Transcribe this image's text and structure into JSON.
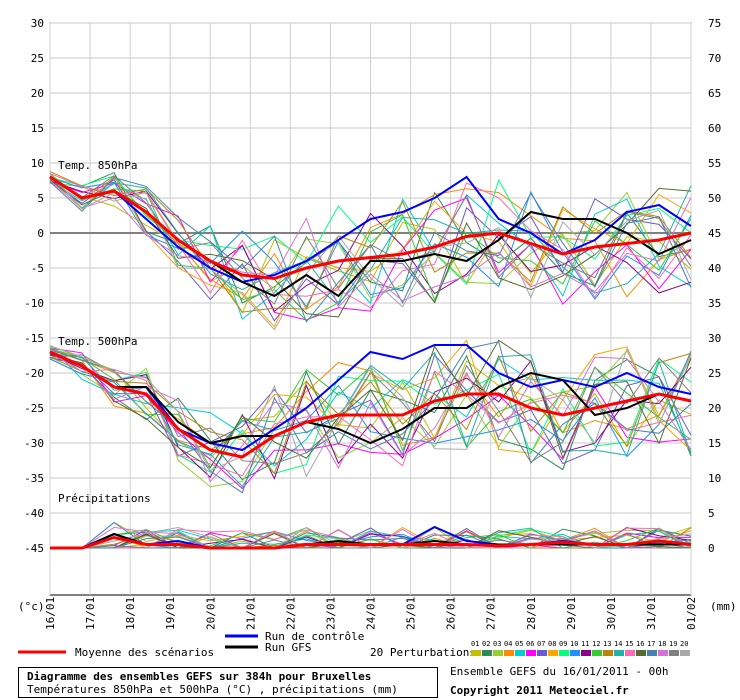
{
  "chart_data": {
    "type": "line",
    "x_ticks": [
      "16/01",
      "17/01",
      "18/01",
      "19/01",
      "20/01",
      "21/01",
      "22/01",
      "23/01",
      "24/01",
      "25/01",
      "26/01",
      "27/01",
      "28/01",
      "29/01",
      "30/01",
      "31/01",
      "01/02"
    ],
    "left_axis": {
      "label": "(°c)",
      "ticks": [
        30,
        25,
        20,
        15,
        10,
        5,
        0,
        -5,
        -10,
        -15,
        -20,
        -25,
        -30,
        -35,
        -40,
        -45
      ],
      "range": [
        -45,
        30
      ]
    },
    "right_axis": {
      "label": "(mm)",
      "ticks": [
        75,
        70,
        65,
        60,
        55,
        50,
        45,
        40,
        35,
        30,
        25,
        20,
        15,
        10,
        5,
        0
      ],
      "range": [
        0,
        75
      ]
    },
    "panels": [
      {
        "label": "Temp. 850hPa",
        "series": [
          {
            "name": "Moyenne des scénarios",
            "color": "#ff0000",
            "values": [
              8,
              5,
              6,
              3,
              -1,
              -4,
              -6,
              -6.5,
              -5,
              -4,
              -3.5,
              -3,
              -2,
              -0.5,
              0,
              -1.5,
              -3,
              -2,
              -1.5,
              -1,
              0
            ]
          },
          {
            "name": "Run de contrôle",
            "color": "#0000ff",
            "values": [
              8,
              5,
              6,
              2,
              -2,
              -5,
              -7,
              -6,
              -4,
              -1,
              2,
              3,
              5,
              8,
              2,
              0,
              -3,
              -1,
              3,
              4,
              1
            ]
          },
          {
            "name": "Run GFS",
            "color": "#000000",
            "values": [
              8,
              5,
              6,
              3,
              -1,
              -4,
              -7,
              -9,
              -6,
              -9,
              -4,
              -4,
              -3,
              -4,
              -1,
              3,
              2,
              2,
              0,
              -3,
              -1
            ]
          }
        ]
      },
      {
        "label": "Temp. 500hPa",
        "series": [
          {
            "name": "Moyenne des scénarios",
            "color": "#ff0000",
            "values": [
              -17,
              -19,
              -22,
              -23,
              -28,
              -31,
              -32,
              -29,
              -27,
              -26,
              -26,
              -26,
              -24,
              -23,
              -23,
              -25,
              -26,
              -25,
              -24,
              -23,
              -24
            ]
          },
          {
            "name": "Run de contrôle",
            "color": "#0000ff",
            "values": [
              -17,
              -19,
              -22,
              -22,
              -28,
              -30,
              -31,
              -28,
              -25,
              -21,
              -17,
              -18,
              -16,
              -16,
              -20,
              -22,
              -21,
              -22,
              -20,
              -22,
              -23
            ]
          },
          {
            "name": "Run GFS",
            "color": "#000000",
            "values": [
              -17,
              -19,
              -22,
              -22,
              -27,
              -30,
              -29,
              -29,
              -27,
              -28,
              -30,
              -28,
              -25,
              -25,
              -22,
              -20,
              -21,
              -26,
              -25,
              -23,
              -24
            ]
          }
        ]
      },
      {
        "label": "Précipitations",
        "series": [
          {
            "name": "Moyenne des scénarios",
            "color": "#ff0000",
            "values": [
              0,
              0,
              1.5,
              0.5,
              0.5,
              0,
              0,
              0,
              0.5,
              0.5,
              0.5,
              0.5,
              0.5,
              0.5,
              0.3,
              0.5,
              0.8,
              0.5,
              0.5,
              1,
              0.5
            ]
          },
          {
            "name": "Run de contrôle",
            "color": "#0000ff",
            "values": [
              0,
              0,
              2,
              0.5,
              1,
              0,
              0,
              0,
              0.5,
              0.5,
              0.5,
              0.5,
              3,
              1,
              0.5,
              0.5,
              1,
              0.5,
              0.5,
              1,
              0.5
            ]
          },
          {
            "name": "Run GFS",
            "color": "#000000",
            "values": [
              0,
              0,
              2,
              0.5,
              0.5,
              0,
              0,
              0,
              0.5,
              1,
              0.5,
              0.5,
              1,
              0.5,
              0.5,
              0.5,
              0.5,
              0.5,
              0.5,
              0.5,
              0.5
            ]
          }
        ]
      }
    ],
    "perturbations": {
      "label": "20 Perturbations",
      "ids": [
        "01",
        "02",
        "03",
        "04",
        "05",
        "06",
        "07",
        "08",
        "09",
        "10",
        "11",
        "12",
        "13",
        "14",
        "15",
        "16",
        "17",
        "18",
        "19",
        "20"
      ],
      "colors": [
        "#c0c000",
        "#2e8b57",
        "#9acd32",
        "#ff8c00",
        "#00ced1",
        "#ff00ff",
        "#6a5acd",
        "#ffa500",
        "#00ff7f",
        "#1e90ff",
        "#8b008b",
        "#32cd32",
        "#b8860b",
        "#20b2aa",
        "#ff69b4",
        "#556b2f",
        "#4682b4",
        "#da70d6",
        "#808080",
        "#a9a9a9"
      ]
    },
    "legend": {
      "mean": "Moyenne des scénarios",
      "control": "Run de contrôle",
      "gfs": "Run GFS"
    }
  },
  "title_box": {
    "line1": "Diagramme des ensembles GEFS sur 384h pour Bruxelles",
    "line2": "Températures 850hPa et 500hPa (°C) , précipitations (mm)"
  },
  "run_info": "Ensemble GEFS du 16/01/2011 - 00h",
  "copyright": "Copyright 2011 Meteociel.fr"
}
